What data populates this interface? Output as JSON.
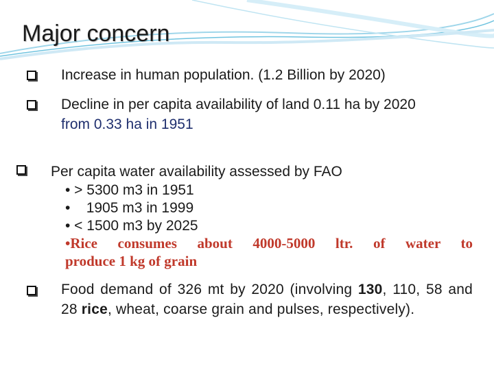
{
  "slide": {
    "title": "Major concern",
    "points": [
      {
        "text": "Increase in human population. (1.2 Billion by 2020)"
      },
      {
        "line1": "Decline in per capita availability of land 0.11 ha by 2020",
        "line2": "from 0.33 ha in 1951"
      },
      {
        "text": "Per capita water availability assessed by FAO",
        "subs": [
          "• > 5300 m3 in 1951",
          "•    1905 m3 in 1999",
          "• < 1500 m3 by 2025"
        ],
        "highlight_line1": "•Rice consumes about 4000-5000 ltr. of water to",
        "highlight_line2": "produce 1 kg of grain"
      },
      {
        "text_a": "Food demand of 326 mt by 2020 (involving ",
        "bold_a": "130",
        "text_b": ", 110, 58 and 28 ",
        "bold_b": "rice",
        "text_c": ", wheat, coarse grain and pulses, respectively)."
      }
    ],
    "colors": {
      "accent_wave": "#6fc3df",
      "highlight": "#c0392b",
      "navy_text": "#1f2f6e"
    },
    "icons": {
      "bullet": "checkbox-square-icon"
    }
  }
}
